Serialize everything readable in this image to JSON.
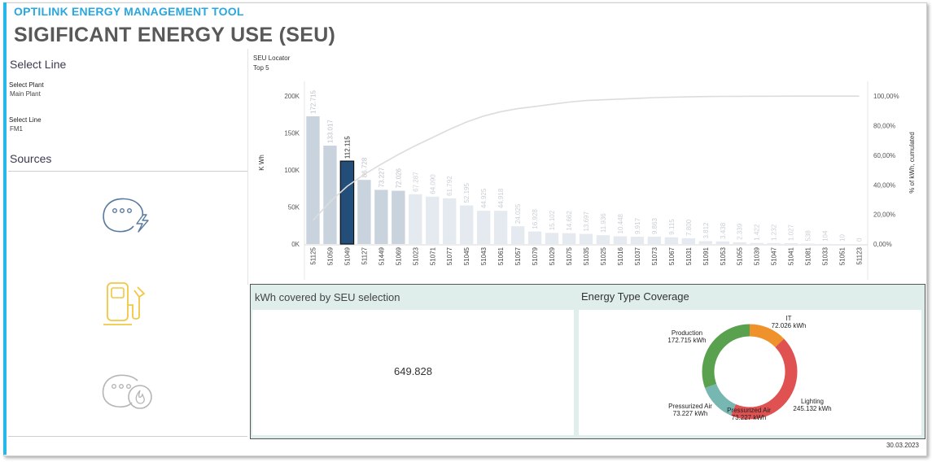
{
  "header": {
    "app_title": "OPTILINK ENERGY MANAGEMENT TOOL",
    "page_title": "SIGIFICANT ENERGY USE (SEU)"
  },
  "sidebar": {
    "select_line_heading": "Select Line",
    "plant_label": "Select Plant",
    "plant_value": "Main Plant",
    "line_label": "Select Line",
    "line_value": "FM1",
    "sources_heading": "Sources",
    "sources": [
      {
        "icon": "electricity-meter-icon",
        "color": "#5a7aa0"
      },
      {
        "icon": "fuel-pump-icon",
        "color": "#f2c744"
      },
      {
        "icon": "gas-meter-icon",
        "color": "#b5b5b5"
      }
    ]
  },
  "chart_data": [
    {
      "type": "bar",
      "title": "SEU Locator",
      "subtitle": "Top 5",
      "ylabel": "K Wh",
      "y2label": "% of kWh, cumulated",
      "ylim": [
        0,
        220000
      ],
      "yticks": [
        "0K",
        "50K",
        "100K",
        "150K",
        "200K"
      ],
      "y2ticks": [
        "0,00%",
        "20,00%",
        "40,00%",
        "60,00%",
        "80,00%",
        "100,00%"
      ],
      "y2lim": [
        0,
        1.1
      ],
      "highlight_index": 2,
      "categories": [
        "51125",
        "51059",
        "51049",
        "51127",
        "51449",
        "51069",
        "51023",
        "51071",
        "51077",
        "51045",
        "51043",
        "51061",
        "51057",
        "51079",
        "51029",
        "51075",
        "51035",
        "51025",
        "51016",
        "51037",
        "51073",
        "51067",
        "51031",
        "51091",
        "51053",
        "51055",
        "51039",
        "51047",
        "51041",
        "51081",
        "51033",
        "51051",
        "51123"
      ],
      "value_labels": [
        "172.715",
        "133.017",
        "112.115",
        "86.728",
        "73.227",
        "72.026",
        "67.287",
        "64.090",
        "61.792",
        "52.195",
        "44.925",
        "44.918",
        "24.025",
        "16.928",
        "15.102",
        "14.662",
        "13.697",
        "11.936",
        "10.448",
        "9.917",
        "9.863",
        "9.115",
        "7.800",
        "3.812",
        "3.438",
        "2.339",
        "1.422",
        "1.232",
        "1.027",
        "538",
        "104",
        "10",
        "0"
      ],
      "values": [
        172715,
        133017,
        112115,
        86728,
        73227,
        72026,
        67287,
        64090,
        61792,
        52195,
        44925,
        44918,
        24025,
        16928,
        15102,
        14662,
        13697,
        11936,
        10448,
        9917,
        9863,
        9115,
        7800,
        3812,
        3438,
        2339,
        1422,
        1232,
        1027,
        538,
        104,
        10,
        0
      ],
      "cumulative_percent": [
        0.16,
        0.285,
        0.39,
        0.47,
        0.54,
        0.605,
        0.665,
        0.72,
        0.775,
        0.825,
        0.865,
        0.895,
        0.915,
        0.93,
        0.945,
        0.96,
        0.97,
        0.975,
        0.98,
        0.985,
        0.99,
        0.993,
        0.995,
        0.997,
        0.998,
        0.999,
        0.9993,
        0.9996,
        0.9998,
        1.0,
        1.0,
        1.0,
        1.0
      ],
      "colors": {
        "top": "#c9d3de",
        "highlight": "#234e7a",
        "rest": "#e4eaf0",
        "line": "#dcdcdc"
      }
    },
    {
      "type": "pie",
      "title": "Energy Type Coverage",
      "slices": [
        {
          "name": "IT",
          "label": "72.026 kWh",
          "value": 72026,
          "color": "#f0922b"
        },
        {
          "name": "Lighting",
          "label": "245.132 kWh",
          "value": 245132,
          "color": "#e05252"
        },
        {
          "name": "Pressurized Air",
          "label": "73.227 kWh",
          "value": 73227,
          "color": "#76b7b2"
        },
        {
          "name": "Production",
          "label": "172.715 kWh",
          "value": 172715,
          "color": "#59a14f"
        }
      ],
      "extra_labels": [
        {
          "name": "Pressurized Air",
          "label": "73.227 kWh"
        }
      ]
    }
  ],
  "panel": {
    "kwh_title": "kWh covered by SEU selection",
    "kwh_value": "649.828"
  },
  "footer": {
    "date": "30.03.2023"
  }
}
